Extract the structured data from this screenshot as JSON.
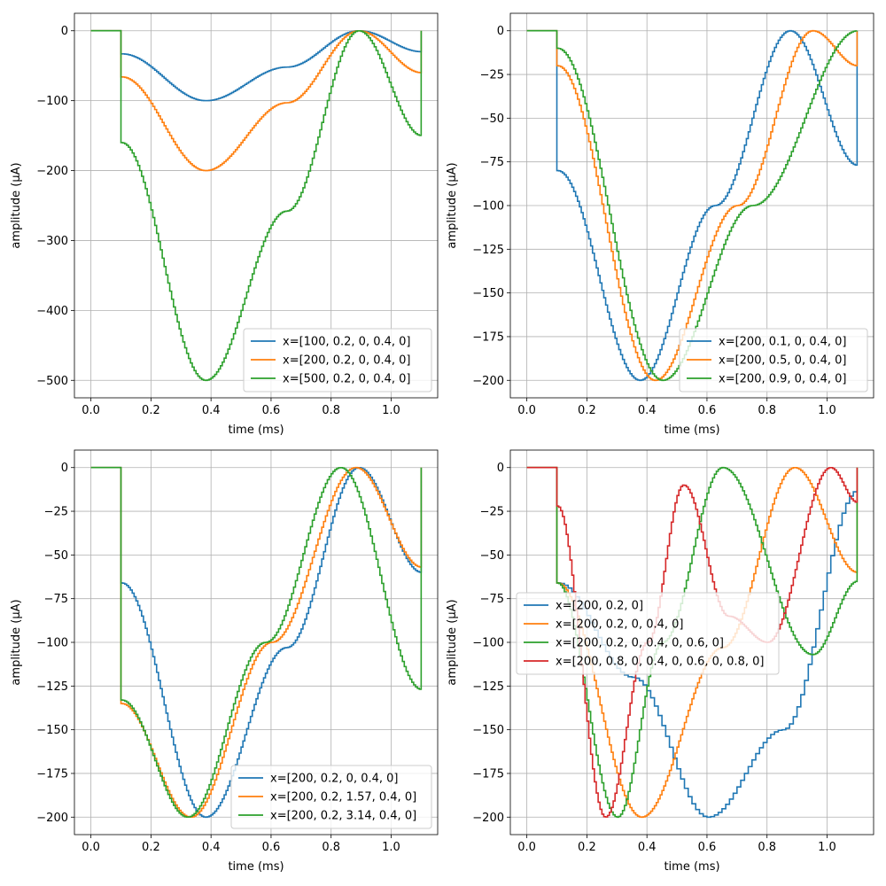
{
  "chart_data": [
    {
      "type": "line",
      "step": true,
      "xlabel": "time (ms)",
      "ylabel": "amplitude (µA)",
      "xlim": [
        -0.055,
        1.155
      ],
      "ylim": [
        -525,
        25
      ],
      "xticks": [
        0.0,
        0.2,
        0.4,
        0.6,
        0.8,
        1.0
      ],
      "xtick_labels": [
        "0.0",
        "0.2",
        "0.4",
        "0.6",
        "0.8",
        "1.0"
      ],
      "yticks": [
        0,
        -100,
        -200,
        -300,
        -400,
        -500
      ],
      "ytick_labels": [
        "0",
        "−100",
        "−200",
        "−300",
        "−400",
        "−500"
      ],
      "grid": true,
      "legend_position": "lower-right",
      "series": [
        {
          "name": "x=[100, 0.2, 0, 0.4, 0]",
          "color": "#1f77b4",
          "points": [
            [
              0.1,
              0
            ],
            [
              0.1,
              -33
            ],
            [
              0.38,
              -100
            ],
            [
              0.65,
              -52
            ],
            [
              0.89,
              0
            ],
            [
              1.1,
              -30
            ]
          ]
        },
        {
          "name": "x=[200, 0.2, 0, 0.4, 0]",
          "color": "#ff7f0e",
          "points": [
            [
              0.1,
              0
            ],
            [
              0.1,
              -66
            ],
            [
              0.38,
              -200
            ],
            [
              0.65,
              -103
            ],
            [
              0.89,
              0
            ],
            [
              1.1,
              -60
            ]
          ]
        },
        {
          "name": "x=[500, 0.2, 0, 0.4, 0]",
          "color": "#2ca02c",
          "points": [
            [
              0.1,
              0
            ],
            [
              0.1,
              -160
            ],
            [
              0.38,
              -500
            ],
            [
              0.65,
              -258
            ],
            [
              0.89,
              0
            ],
            [
              1.1,
              -150
            ]
          ]
        }
      ]
    },
    {
      "type": "line",
      "step": true,
      "xlabel": "time (ms)",
      "ylabel": "amplitude (µA)",
      "xlim": [
        -0.055,
        1.155
      ],
      "ylim": [
        -210,
        10
      ],
      "xticks": [
        0.0,
        0.2,
        0.4,
        0.6,
        0.8,
        1.0
      ],
      "xtick_labels": [
        "0.0",
        "0.2",
        "0.4",
        "0.6",
        "0.8",
        "1.0"
      ],
      "yticks": [
        0,
        -25,
        -50,
        -75,
        -100,
        -125,
        -150,
        -175,
        -200
      ],
      "ytick_labels": [
        "0",
        "−25",
        "−50",
        "−75",
        "−100",
        "−125",
        "−150",
        "−175",
        "−200"
      ],
      "grid": true,
      "legend_position": "lower-right",
      "series": [
        {
          "name": "x=[200, 0.1, 0, 0.4, 0]",
          "color": "#1f77b4",
          "points": [
            [
              0.1,
              0
            ],
            [
              0.1,
              -80
            ],
            [
              0.375,
              -200
            ],
            [
              0.625,
              -100
            ],
            [
              0.875,
              0
            ],
            [
              1.1,
              -77
            ]
          ]
        },
        {
          "name": "x=[200, 0.5, 0, 0.4, 0]",
          "color": "#ff7f0e",
          "points": [
            [
              0.1,
              0
            ],
            [
              0.1,
              -20
            ],
            [
              0.425,
              -200
            ],
            [
              0.7,
              -100
            ],
            [
              0.95,
              0
            ],
            [
              1.1,
              -20
            ]
          ]
        },
        {
          "name": "x=[200, 0.9, 0, 0.4, 0]",
          "color": "#2ca02c",
          "points": [
            [
              0.1,
              0
            ],
            [
              0.1,
              -10
            ],
            [
              0.45,
              -200
            ],
            [
              0.75,
              -100
            ],
            [
              1.1,
              0
            ]
          ]
        }
      ]
    },
    {
      "type": "line",
      "step": true,
      "xlabel": "time (ms)",
      "ylabel": "amplitude (µA)",
      "xlim": [
        -0.055,
        1.155
      ],
      "ylim": [
        -210,
        10
      ],
      "xticks": [
        0.0,
        0.2,
        0.4,
        0.6,
        0.8,
        1.0
      ],
      "xtick_labels": [
        "0.0",
        "0.2",
        "0.4",
        "0.6",
        "0.8",
        "1.0"
      ],
      "yticks": [
        0,
        -25,
        -50,
        -75,
        -100,
        -125,
        -150,
        -175,
        -200
      ],
      "ytick_labels": [
        "0",
        "−25",
        "−50",
        "−75",
        "−100",
        "−125",
        "−150",
        "−175",
        "−200"
      ],
      "grid": true,
      "legend_position": "lower-right",
      "series": [
        {
          "name": "x=[200, 0.2, 0, 0.4, 0]",
          "color": "#1f77b4",
          "points": [
            [
              0.1,
              0
            ],
            [
              0.1,
              -66
            ],
            [
              0.38,
              -200
            ],
            [
              0.65,
              -103
            ],
            [
              0.89,
              0
            ],
            [
              1.1,
              -60
            ]
          ]
        },
        {
          "name": "x=[200, 0.2, 1.57, 0.4, 0]",
          "color": "#ff7f0e",
          "points": [
            [
              0.1,
              0
            ],
            [
              0.1,
              -135
            ],
            [
              0.33,
              -200
            ],
            [
              0.6,
              -100
            ],
            [
              0.88,
              0
            ],
            [
              1.1,
              -57
            ]
          ]
        },
        {
          "name": "x=[200, 0.2, 3.14, 0.4, 0]",
          "color": "#2ca02c",
          "points": [
            [
              0.1,
              0
            ],
            [
              0.1,
              -133
            ],
            [
              0.32,
              -200
            ],
            [
              0.58,
              -100
            ],
            [
              0.83,
              0
            ],
            [
              1.1,
              -127
            ]
          ]
        }
      ]
    },
    {
      "type": "line",
      "step": true,
      "xlabel": "time (ms)",
      "ylabel": "amplitude (µA)",
      "xlim": [
        -0.055,
        1.155
      ],
      "ylim": [
        -210,
        10
      ],
      "xticks": [
        0.0,
        0.2,
        0.4,
        0.6,
        0.8,
        1.0
      ],
      "xtick_labels": [
        "0.0",
        "0.2",
        "0.4",
        "0.6",
        "0.8",
        "1.0"
      ],
      "yticks": [
        0,
        -25,
        -50,
        -75,
        -100,
        -125,
        -150,
        -175,
        -200
      ],
      "ytick_labels": [
        "0",
        "−25",
        "−50",
        "−75",
        "−100",
        "−125",
        "−150",
        "−175",
        "−200"
      ],
      "grid": true,
      "legend_position": "center-left",
      "series": [
        {
          "name": "x=[200, 0.2, 0]",
          "color": "#1f77b4",
          "points": [
            [
              0.1,
              0
            ],
            [
              0.1,
              -66
            ],
            [
              0.35,
              -120
            ],
            [
              0.6,
              -200
            ],
            [
              0.85,
              -150
            ],
            [
              1.1,
              -13
            ]
          ]
        },
        {
          "name": "x=[200, 0.2, 0, 0.4, 0]",
          "color": "#ff7f0e",
          "points": [
            [
              0.1,
              0
            ],
            [
              0.1,
              -66
            ],
            [
              0.38,
              -200
            ],
            [
              0.65,
              -103
            ],
            [
              0.89,
              0
            ],
            [
              1.1,
              -60
            ]
          ]
        },
        {
          "name": "x=[200, 0.2, 0, 0.4, 0, 0.6, 0]",
          "color": "#2ca02c",
          "points": [
            [
              0.1,
              0
            ],
            [
              0.1,
              -66
            ],
            [
              0.3,
              -200
            ],
            [
              0.45,
              -100
            ],
            [
              0.65,
              0
            ],
            [
              0.95,
              -107
            ],
            [
              1.1,
              -65
            ]
          ]
        },
        {
          "name": "x=[200, 0.8, 0, 0.4, 0, 0.6, 0, 0.8, 0]",
          "color": "#d62728",
          "points": [
            [
              0.1,
              0
            ],
            [
              0.1,
              -22
            ],
            [
              0.26,
              -200
            ],
            [
              0.4,
              -100
            ],
            [
              0.52,
              -10
            ],
            [
              0.67,
              -85
            ],
            [
              0.8,
              -100
            ],
            [
              1.01,
              0
            ],
            [
              1.1,
              -20
            ]
          ]
        }
      ]
    }
  ]
}
